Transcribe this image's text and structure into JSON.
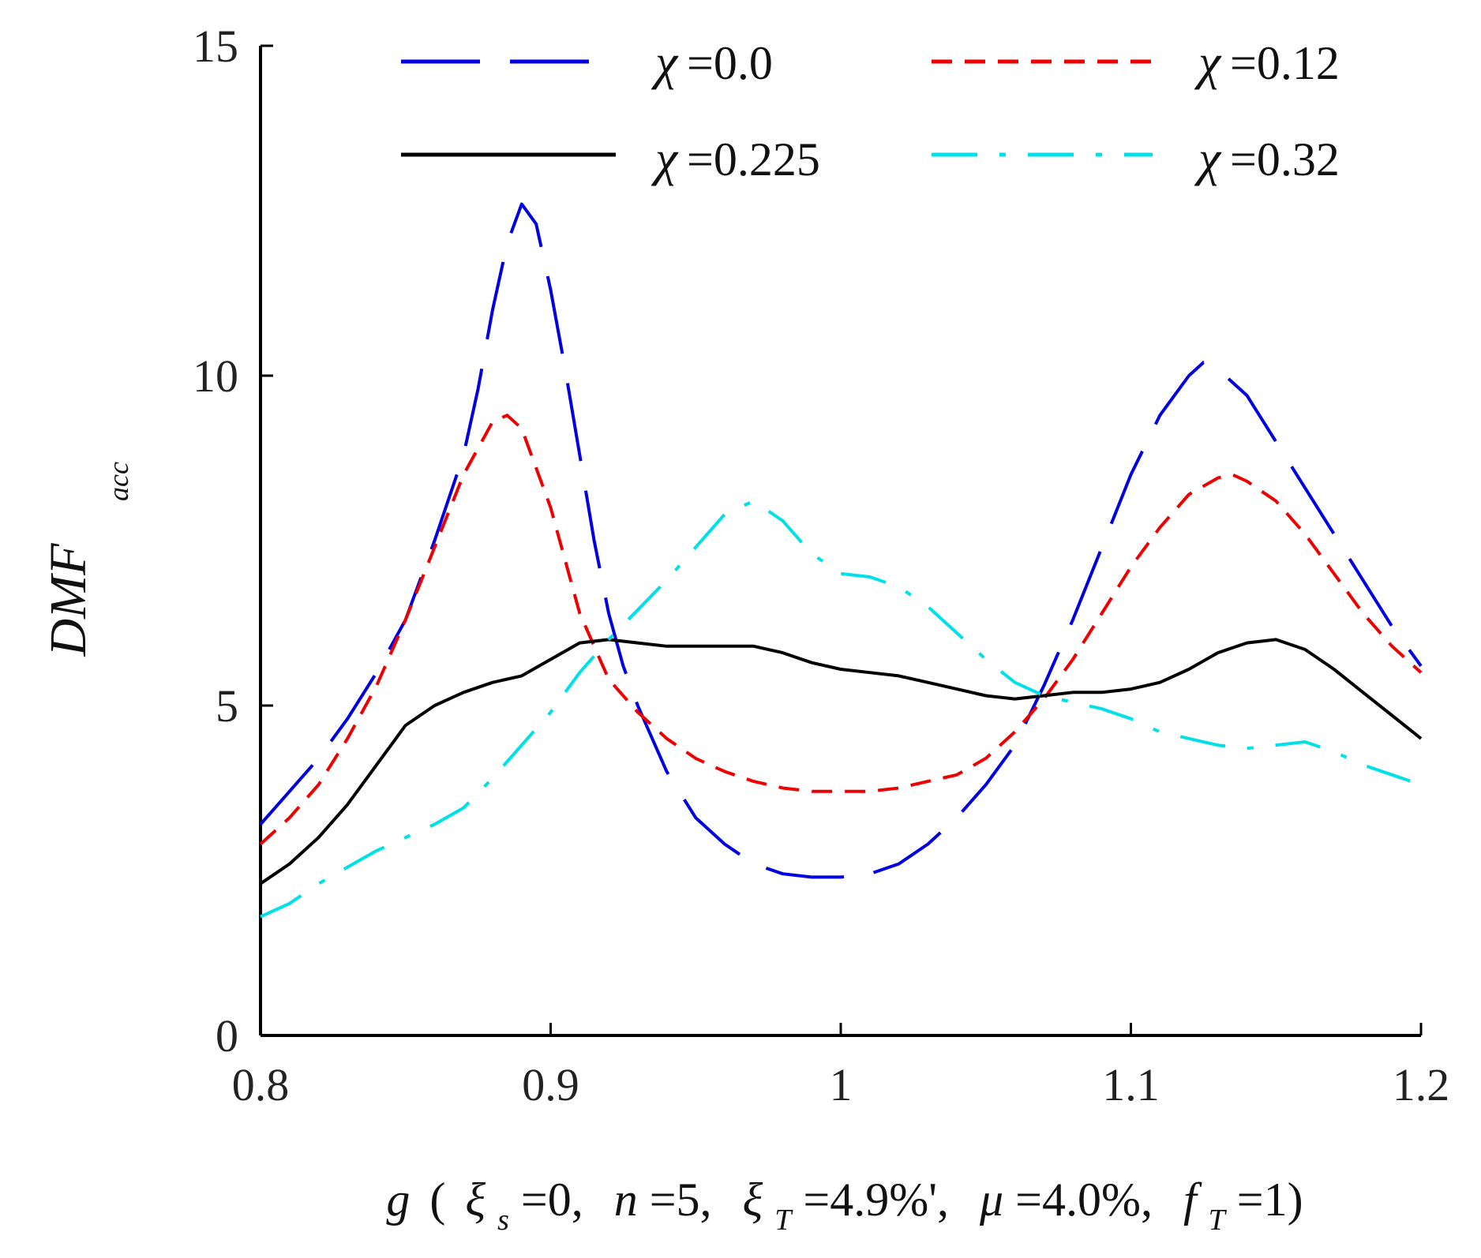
{
  "chart_data": {
    "type": "line",
    "title": "",
    "xlabel": "g ( ξ_s=0,  n=5,  ξ_T=4.9%',  μ=4.0%,  f_T=1)",
    "xlabel_parts": {
      "g": "g",
      "open": "(",
      "xi_s": "ξ",
      "xi_s_sub": "s",
      "xi_s_val": "=0,",
      "n": "n",
      "n_val": "=5,",
      "xi_T": "ξ",
      "xi_T_sub": "T",
      "xi_T_val": "=4.9%',",
      "mu": "μ",
      "mu_val": "=4.0%,",
      "f": "f",
      "f_sub": "T",
      "f_val": "=1)"
    },
    "ylabel": "DMF",
    "ylabel_sub": "acc",
    "xlim": [
      0.8,
      1.2
    ],
    "ylim": [
      0,
      15
    ],
    "xticks": [
      0.8,
      0.9,
      1.0,
      1.1,
      1.2
    ],
    "xtick_labels": [
      "0.8",
      "0.9",
      "1",
      "1.1",
      "1.2"
    ],
    "yticks": [
      0,
      5,
      10,
      15
    ],
    "ytick_labels": [
      "0",
      "5",
      "10",
      "15"
    ],
    "legend_position": "top",
    "series": [
      {
        "name": "χ=0.0",
        "symbol": "χ",
        "value_label": "=0.0",
        "color": "#0000e0",
        "dash": "long-dash",
        "x": [
          0.8,
          0.81,
          0.82,
          0.83,
          0.84,
          0.85,
          0.86,
          0.87,
          0.875,
          0.88,
          0.885,
          0.89,
          0.895,
          0.9,
          0.905,
          0.91,
          0.915,
          0.92,
          0.925,
          0.93,
          0.94,
          0.95,
          0.96,
          0.97,
          0.98,
          0.99,
          1.0,
          1.01,
          1.02,
          1.03,
          1.04,
          1.05,
          1.06,
          1.07,
          1.08,
          1.09,
          1.1,
          1.11,
          1.12,
          1.125,
          1.13,
          1.14,
          1.15,
          1.16,
          1.17,
          1.18,
          1.19,
          1.2
        ],
        "y": [
          3.2,
          3.7,
          4.2,
          4.8,
          5.5,
          6.3,
          7.5,
          8.8,
          9.8,
          11.0,
          12.0,
          12.6,
          12.3,
          11.3,
          10.1,
          8.8,
          7.5,
          6.4,
          5.6,
          5.0,
          4.0,
          3.3,
          2.9,
          2.6,
          2.45,
          2.4,
          2.4,
          2.45,
          2.6,
          2.9,
          3.3,
          3.8,
          4.4,
          5.3,
          6.3,
          7.4,
          8.5,
          9.4,
          10.0,
          10.2,
          10.1,
          9.7,
          9.0,
          8.3,
          7.6,
          6.9,
          6.2,
          5.6
        ]
      },
      {
        "name": "χ=0.12",
        "symbol": "χ",
        "value_label": "=0.12",
        "color": "#ee0000",
        "dash": "short-dash",
        "x": [
          0.8,
          0.81,
          0.82,
          0.83,
          0.84,
          0.85,
          0.86,
          0.87,
          0.88,
          0.885,
          0.89,
          0.9,
          0.91,
          0.92,
          0.93,
          0.94,
          0.95,
          0.96,
          0.97,
          0.98,
          0.99,
          1.0,
          1.01,
          1.02,
          1.03,
          1.04,
          1.05,
          1.06,
          1.07,
          1.08,
          1.09,
          1.1,
          1.11,
          1.12,
          1.13,
          1.135,
          1.14,
          1.15,
          1.16,
          1.17,
          1.18,
          1.19,
          1.2
        ],
        "y": [
          2.9,
          3.3,
          3.8,
          4.5,
          5.3,
          6.3,
          7.4,
          8.5,
          9.3,
          9.4,
          9.2,
          8.0,
          6.4,
          5.4,
          4.9,
          4.5,
          4.2,
          4.0,
          3.85,
          3.75,
          3.7,
          3.7,
          3.7,
          3.75,
          3.85,
          3.95,
          4.2,
          4.6,
          5.1,
          5.7,
          6.4,
          7.1,
          7.7,
          8.2,
          8.45,
          8.5,
          8.4,
          8.1,
          7.6,
          7.0,
          6.4,
          5.9,
          5.5
        ]
      },
      {
        "name": "χ=0.225",
        "symbol": "χ",
        "value_label": "=0.225",
        "color": "#000000",
        "dash": "solid",
        "x": [
          0.8,
          0.81,
          0.82,
          0.83,
          0.84,
          0.85,
          0.86,
          0.87,
          0.88,
          0.89,
          0.9,
          0.91,
          0.92,
          0.93,
          0.94,
          0.95,
          0.96,
          0.97,
          0.98,
          0.99,
          1.0,
          1.01,
          1.02,
          1.03,
          1.04,
          1.05,
          1.06,
          1.07,
          1.08,
          1.09,
          1.1,
          1.11,
          1.12,
          1.13,
          1.14,
          1.15,
          1.16,
          1.17,
          1.18,
          1.19,
          1.2
        ],
        "y": [
          2.3,
          2.6,
          3.0,
          3.5,
          4.1,
          4.7,
          5.0,
          5.2,
          5.35,
          5.45,
          5.7,
          5.95,
          6.0,
          5.95,
          5.9,
          5.9,
          5.9,
          5.9,
          5.8,
          5.65,
          5.55,
          5.5,
          5.45,
          5.35,
          5.25,
          5.15,
          5.1,
          5.15,
          5.2,
          5.2,
          5.25,
          5.35,
          5.55,
          5.8,
          5.95,
          6.0,
          5.85,
          5.55,
          5.2,
          4.85,
          4.5
        ]
      },
      {
        "name": "χ=0.32",
        "symbol": "χ",
        "value_label": "=0.32",
        "color": "#00e0e8",
        "dash": "dash-dot",
        "x": [
          0.8,
          0.81,
          0.82,
          0.83,
          0.84,
          0.85,
          0.86,
          0.87,
          0.88,
          0.89,
          0.9,
          0.91,
          0.92,
          0.93,
          0.94,
          0.95,
          0.96,
          0.97,
          0.98,
          0.99,
          1.0,
          1.01,
          1.02,
          1.03,
          1.04,
          1.05,
          1.06,
          1.07,
          1.08,
          1.09,
          1.1,
          1.11,
          1.12,
          1.13,
          1.14,
          1.15,
          1.16,
          1.17,
          1.18,
          1.19,
          1.2
        ],
        "y": [
          1.8,
          2.0,
          2.3,
          2.55,
          2.8,
          3.0,
          3.2,
          3.45,
          3.9,
          4.4,
          4.9,
          5.5,
          6.0,
          6.45,
          6.9,
          7.4,
          7.9,
          8.1,
          7.8,
          7.3,
          7.0,
          6.95,
          6.8,
          6.5,
          6.1,
          5.7,
          5.35,
          5.15,
          5.05,
          4.95,
          4.8,
          4.6,
          4.5,
          4.4,
          4.35,
          4.4,
          4.45,
          4.3,
          4.1,
          3.95,
          3.8
        ]
      }
    ]
  }
}
